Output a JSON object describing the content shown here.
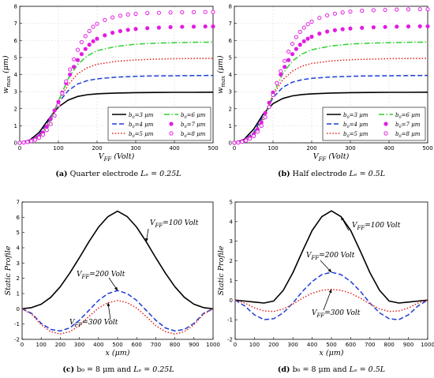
{
  "chart_data": [
    {
      "id": "a",
      "type": "line",
      "caption": {
        "tag": "(a)",
        "text": "Quarter electrode",
        "math": "Lₑ = 0.25L"
      },
      "xlabel": "V_FF (Volt)",
      "ylabel": "w_max (μm)",
      "xlim": [
        0,
        500
      ],
      "ylim": [
        0,
        8
      ],
      "xticks": [
        0,
        100,
        200,
        300,
        400,
        500
      ],
      "yticks": [
        0,
        1,
        2,
        3,
        4,
        5,
        6,
        7,
        8
      ],
      "grid": true,
      "legend": {
        "placement": "bottom-right",
        "columns": 2
      },
      "series": [
        {
          "name": "b0=3 μm",
          "style": "solid",
          "color": "#000000",
          "x": [
            0,
            25,
            50,
            75,
            100,
            125,
            150,
            175,
            200,
            250,
            300,
            350,
            400,
            450,
            500
          ],
          "y": [
            0,
            0.15,
            0.6,
            1.4,
            2.1,
            2.5,
            2.72,
            2.82,
            2.87,
            2.92,
            2.94,
            2.95,
            2.96,
            2.96,
            2.97
          ]
        },
        {
          "name": "b0=4 μm",
          "style": "dashed",
          "color": "#1f3fd6",
          "x": [
            0,
            25,
            50,
            75,
            100,
            125,
            150,
            175,
            200,
            250,
            300,
            350,
            400,
            450,
            500
          ],
          "y": [
            0,
            0.1,
            0.45,
            1.3,
            2.35,
            3.05,
            3.45,
            3.65,
            3.75,
            3.85,
            3.9,
            3.92,
            3.93,
            3.94,
            3.95
          ]
        },
        {
          "name": "b0=5 μm",
          "style": "dotted",
          "color": "#e0231f",
          "x": [
            0,
            25,
            50,
            75,
            100,
            125,
            150,
            175,
            200,
            250,
            300,
            350,
            400,
            450,
            500
          ],
          "y": [
            0,
            0.08,
            0.4,
            1.2,
            2.45,
            3.4,
            4.05,
            4.4,
            4.6,
            4.78,
            4.86,
            4.9,
            4.93,
            4.94,
            4.95
          ]
        },
        {
          "name": "b0=6 μm",
          "style": "dashdot",
          "color": "#2ed12e",
          "x": [
            0,
            25,
            50,
            75,
            100,
            125,
            150,
            175,
            200,
            250,
            300,
            350,
            400,
            450,
            500
          ],
          "y": [
            0,
            0.06,
            0.32,
            1.05,
            2.45,
            3.75,
            4.6,
            5.1,
            5.4,
            5.65,
            5.78,
            5.84,
            5.87,
            5.89,
            5.9
          ]
        },
        {
          "name": "b0=7 μm",
          "style": "filled-circle",
          "color": "#e11ee1",
          "x": [
            0,
            10,
            20,
            30,
            40,
            50,
            60,
            70,
            80,
            90,
            100,
            110,
            120,
            130,
            140,
            150,
            160,
            170,
            180,
            190,
            200,
            220,
            240,
            260,
            280,
            300,
            330,
            360,
            390,
            420,
            450,
            480,
            500
          ],
          "y": [
            0,
            0.02,
            0.06,
            0.13,
            0.23,
            0.38,
            0.6,
            0.95,
            1.4,
            1.9,
            2.4,
            2.95,
            3.5,
            4.0,
            4.45,
            4.85,
            5.2,
            5.5,
            5.75,
            5.95,
            6.1,
            6.3,
            6.45,
            6.55,
            6.62,
            6.67,
            6.72,
            6.75,
            6.78,
            6.8,
            6.81,
            6.82,
            6.82
          ]
        },
        {
          "name": "b0=8 μm",
          "style": "open-circle",
          "color": "#e11ee1",
          "x": [
            0,
            10,
            20,
            30,
            40,
            50,
            60,
            70,
            80,
            90,
            100,
            110,
            120,
            130,
            140,
            150,
            160,
            170,
            180,
            190,
            200,
            220,
            240,
            260,
            280,
            300,
            330,
            360,
            390,
            420,
            450,
            480,
            500
          ],
          "y": [
            0,
            0.02,
            0.05,
            0.1,
            0.18,
            0.3,
            0.48,
            0.75,
            1.1,
            1.6,
            2.2,
            2.9,
            3.6,
            4.3,
            4.9,
            5.45,
            5.9,
            6.25,
            6.55,
            6.8,
            6.98,
            7.2,
            7.35,
            7.45,
            7.52,
            7.56,
            7.6,
            7.62,
            7.64,
            7.65,
            7.66,
            7.67,
            7.67
          ]
        }
      ]
    },
    {
      "id": "b",
      "type": "line",
      "caption": {
        "tag": "(b)",
        "text": "Half electrode",
        "math": "Lₑ = 0.5L"
      },
      "xlabel": "V_FF (Volt)",
      "ylabel": "w_max (μm)",
      "xlim": [
        0,
        500
      ],
      "ylim": [
        0,
        8
      ],
      "xticks": [
        0,
        100,
        200,
        300,
        400,
        500
      ],
      "yticks": [
        0,
        1,
        2,
        3,
        4,
        5,
        6,
        7,
        8
      ],
      "grid": true,
      "legend": {
        "placement": "bottom-right",
        "columns": 2
      },
      "series": [
        {
          "name": "b0=3 μm",
          "style": "solid",
          "color": "#000000",
          "x": [
            0,
            25,
            50,
            75,
            100,
            125,
            150,
            175,
            200,
            250,
            300,
            350,
            400,
            450,
            500
          ],
          "y": [
            0,
            0.2,
            0.8,
            1.7,
            2.3,
            2.6,
            2.75,
            2.83,
            2.87,
            2.92,
            2.94,
            2.95,
            2.96,
            2.96,
            2.97
          ]
        },
        {
          "name": "b0=4 μm",
          "style": "dashed",
          "color": "#1f3fd6",
          "x": [
            0,
            25,
            50,
            75,
            100,
            125,
            150,
            175,
            200,
            250,
            300,
            350,
            400,
            450,
            500
          ],
          "y": [
            0,
            0.15,
            0.6,
            1.6,
            2.65,
            3.25,
            3.55,
            3.7,
            3.78,
            3.86,
            3.9,
            3.92,
            3.93,
            3.94,
            3.95
          ]
        },
        {
          "name": "b0=5 μm",
          "style": "dotted",
          "color": "#e0231f",
          "x": [
            0,
            25,
            50,
            75,
            100,
            125,
            150,
            175,
            200,
            250,
            300,
            350,
            400,
            450,
            500
          ],
          "y": [
            0,
            0.12,
            0.5,
            1.45,
            2.8,
            3.7,
            4.2,
            4.5,
            4.65,
            4.8,
            4.87,
            4.9,
            4.93,
            4.94,
            4.95
          ]
        },
        {
          "name": "b0=6 μm",
          "style": "dashdot",
          "color": "#2ed12e",
          "x": [
            0,
            25,
            50,
            75,
            100,
            125,
            150,
            175,
            200,
            250,
            300,
            350,
            400,
            450,
            500
          ],
          "y": [
            0,
            0.1,
            0.42,
            1.3,
            2.85,
            4.05,
            4.8,
            5.2,
            5.45,
            5.68,
            5.79,
            5.84,
            5.87,
            5.89,
            5.9
          ]
        },
        {
          "name": "b0=7 μm",
          "style": "filled-circle",
          "color": "#e11ee1",
          "x": [
            0,
            10,
            20,
            30,
            40,
            50,
            60,
            70,
            80,
            90,
            100,
            110,
            120,
            130,
            140,
            150,
            160,
            170,
            180,
            190,
            200,
            220,
            240,
            260,
            280,
            300,
            330,
            360,
            390,
            420,
            450,
            480,
            500
          ],
          "y": [
            0,
            0.03,
            0.08,
            0.17,
            0.3,
            0.5,
            0.78,
            1.2,
            1.75,
            2.35,
            2.95,
            3.5,
            4.0,
            4.45,
            4.85,
            5.2,
            5.5,
            5.75,
            5.95,
            6.1,
            6.22,
            6.4,
            6.52,
            6.6,
            6.66,
            6.7,
            6.74,
            6.77,
            6.79,
            6.81,
            6.82,
            6.83,
            6.83
          ]
        },
        {
          "name": "b0=8 μm",
          "style": "open-circle",
          "color": "#e11ee1",
          "x": [
            0,
            10,
            20,
            30,
            40,
            50,
            60,
            70,
            80,
            90,
            100,
            110,
            120,
            130,
            140,
            150,
            160,
            170,
            180,
            190,
            200,
            220,
            240,
            260,
            280,
            300,
            330,
            360,
            390,
            420,
            450,
            480,
            500
          ],
          "y": [
            0,
            0.02,
            0.06,
            0.13,
            0.24,
            0.4,
            0.65,
            1.0,
            1.5,
            2.1,
            2.8,
            3.5,
            4.2,
            4.8,
            5.35,
            5.8,
            6.2,
            6.5,
            6.75,
            6.95,
            7.1,
            7.32,
            7.47,
            7.57,
            7.64,
            7.69,
            7.74,
            7.77,
            7.79,
            7.81,
            7.82,
            7.83,
            7.83
          ]
        }
      ]
    },
    {
      "id": "c",
      "type": "line",
      "caption": {
        "tag": "(c)",
        "text": "b₀ = 8 μm and",
        "math": "Lₑ = 0.25L"
      },
      "xlabel": "x (μm)",
      "ylabel": "Static Profile",
      "xlim": [
        0,
        1000
      ],
      "ylim": [
        -2,
        7
      ],
      "xticks": [
        0,
        100,
        200,
        300,
        400,
        500,
        600,
        700,
        800,
        900,
        1000
      ],
      "yticks": [
        -2,
        -1,
        0,
        1,
        2,
        3,
        4,
        5,
        6,
        7
      ],
      "grid": false,
      "annotations": [
        "V_FF=100 Volt",
        "V_FF=200 Volt",
        "V_FF=300 Volt"
      ],
      "series": [
        {
          "name": "V_FF=100 Volt",
          "style": "solid",
          "color": "#000000",
          "x": [
            0,
            50,
            100,
            150,
            200,
            250,
            300,
            350,
            400,
            450,
            500,
            550,
            600,
            650,
            700,
            750,
            800,
            850,
            900,
            950,
            1000
          ],
          "y": [
            0,
            0.08,
            0.3,
            0.75,
            1.45,
            2.35,
            3.35,
            4.4,
            5.35,
            6.05,
            6.4,
            6.05,
            5.35,
            4.4,
            3.35,
            2.35,
            1.45,
            0.75,
            0.3,
            0.08,
            0
          ]
        },
        {
          "name": "V_FF=200 Volt",
          "style": "dashed",
          "color": "#1f3fd6",
          "x": [
            0,
            50,
            100,
            150,
            200,
            250,
            300,
            350,
            400,
            450,
            500,
            550,
            600,
            650,
            700,
            750,
            800,
            850,
            900,
            950,
            1000
          ],
          "y": [
            0,
            -0.3,
            -0.95,
            -1.35,
            -1.45,
            -1.25,
            -0.75,
            -0.1,
            0.55,
            1.0,
            1.2,
            1.0,
            0.55,
            -0.1,
            -0.75,
            -1.25,
            -1.45,
            -1.35,
            -0.95,
            -0.3,
            0
          ]
        },
        {
          "name": "V_FF=300 Volt",
          "style": "dotted",
          "color": "#e0231f",
          "x": [
            0,
            50,
            100,
            150,
            200,
            250,
            300,
            350,
            400,
            450,
            500,
            550,
            600,
            650,
            700,
            750,
            800,
            850,
            900,
            950,
            1000
          ],
          "y": [
            0,
            -0.35,
            -1.05,
            -1.5,
            -1.65,
            -1.5,
            -1.1,
            -0.5,
            0.05,
            0.4,
            0.55,
            0.4,
            0.05,
            -0.5,
            -1.1,
            -1.5,
            -1.65,
            -1.5,
            -1.05,
            -0.35,
            0
          ]
        }
      ]
    },
    {
      "id": "d",
      "type": "line",
      "caption": {
        "tag": "(d)",
        "text": "b₀ = 8 μm and",
        "math": "Lₑ = 0.5L"
      },
      "xlabel": "x (μm)",
      "ylabel": "Static Profile",
      "xlim": [
        0,
        1000
      ],
      "ylim": [
        -2,
        5
      ],
      "xticks": [
        0,
        100,
        200,
        300,
        400,
        500,
        600,
        700,
        800,
        900,
        1000
      ],
      "yticks": [
        -2,
        -1,
        0,
        1,
        2,
        3,
        4,
        5
      ],
      "grid": false,
      "annotations": [
        "V_FF=100 Volt",
        "V_FF=200 Volt",
        "V_FF=300 Volt"
      ],
      "series": [
        {
          "name": "V_FF=100 Volt",
          "style": "solid",
          "color": "#000000",
          "x": [
            0,
            50,
            100,
            150,
            200,
            250,
            300,
            350,
            400,
            450,
            500,
            550,
            600,
            650,
            700,
            750,
            800,
            850,
            900,
            950,
            1000
          ],
          "y": [
            0,
            -0.05,
            -0.1,
            -0.15,
            -0.05,
            0.5,
            1.4,
            2.5,
            3.55,
            4.25,
            4.55,
            4.25,
            3.55,
            2.5,
            1.4,
            0.5,
            -0.05,
            -0.15,
            -0.1,
            -0.05,
            0
          ]
        },
        {
          "name": "V_FF=200 Volt",
          "style": "dashed",
          "color": "#1f3fd6",
          "x": [
            0,
            50,
            100,
            150,
            200,
            250,
            300,
            350,
            400,
            450,
            500,
            550,
            600,
            650,
            700,
            750,
            800,
            850,
            900,
            950,
            1000
          ],
          "y": [
            0,
            -0.3,
            -0.75,
            -1.0,
            -0.95,
            -0.65,
            -0.15,
            0.45,
            0.95,
            1.3,
            1.42,
            1.3,
            0.95,
            0.45,
            -0.15,
            -0.65,
            -0.95,
            -1.0,
            -0.75,
            -0.3,
            0
          ]
        },
        {
          "name": "V_FF=300 Volt",
          "style": "dotted",
          "color": "#e0231f",
          "x": [
            0,
            50,
            100,
            150,
            200,
            250,
            300,
            350,
            400,
            450,
            500,
            550,
            600,
            650,
            700,
            750,
            800,
            850,
            900,
            950,
            1000
          ],
          "y": [
            0,
            -0.15,
            -0.4,
            -0.55,
            -0.58,
            -0.45,
            -0.2,
            0.1,
            0.35,
            0.5,
            0.55,
            0.5,
            0.35,
            0.1,
            -0.2,
            -0.45,
            -0.58,
            -0.55,
            -0.4,
            -0.15,
            0
          ]
        }
      ]
    }
  ]
}
